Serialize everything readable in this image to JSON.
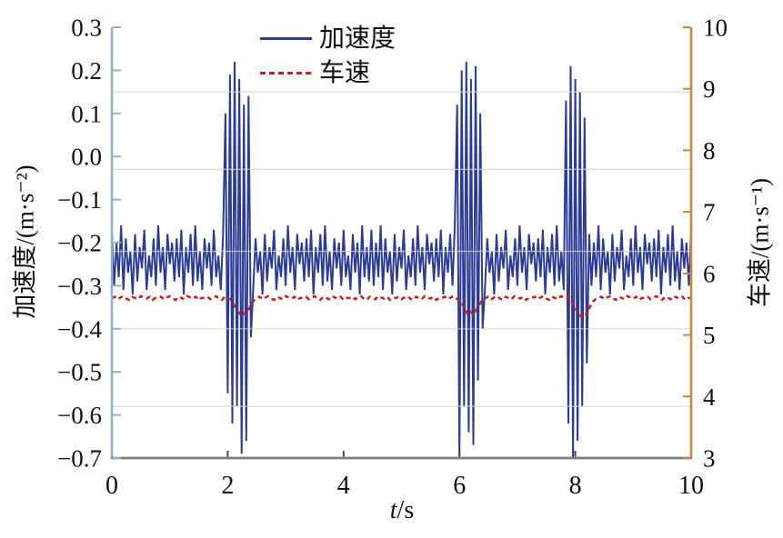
{
  "chart_data": {
    "type": "line",
    "title": "",
    "xlabel": "t/s",
    "xlabel_italic": "t",
    "xlabel_rest": "/s",
    "x_range": [
      0,
      10
    ],
    "x_ticks": [
      0,
      2,
      4,
      6,
      8,
      10
    ],
    "x_tick_labels": [
      "0",
      "2",
      "4",
      "6",
      "8",
      "10"
    ],
    "left_axis": {
      "label": "加速度/(m·s⁻²)",
      "range": [
        -0.7,
        0.3
      ],
      "tick_values": [
        0.3,
        0.2,
        0.1,
        0.0,
        -0.1,
        -0.2,
        -0.3,
        -0.4,
        -0.5,
        -0.6,
        -0.7
      ],
      "tick_labels": [
        "0.3",
        "0.2",
        "0.1",
        "0.0",
        "−0.1",
        "−0.2",
        "−0.3",
        "−0.4",
        "−0.5",
        "−0.6",
        "−0.7"
      ],
      "color": "#8fb3ca"
    },
    "right_axis": {
      "label": "车速/(m·s⁻¹)",
      "range": [
        3,
        10
      ],
      "tick_values": [
        10,
        9,
        8,
        7,
        6,
        5,
        4,
        3
      ],
      "tick_labels": [
        "10",
        "9",
        "8",
        "7",
        "6",
        "5",
        "4",
        "3"
      ],
      "color": "#c8883e"
    },
    "bottom_axis_color": "#7f7f7f",
    "x_tick_color": "#4a4a4a",
    "grid": {
      "left_values": [
        0.15,
        -0.03,
        -0.22,
        -0.4,
        -0.58
      ],
      "color": "#d8cfc8"
    },
    "legend": {
      "position": "top-center",
      "entries": [
        {
          "label": "加速度",
          "style": "solid"
        },
        {
          "label": "车速",
          "style": "dashed"
        }
      ]
    },
    "series": [
      {
        "name": "加速度",
        "axis": "left",
        "color": "#2c3b94",
        "line_style": "solid",
        "t0": 0,
        "dt": 0.04,
        "values": [
          -0.17,
          -0.3,
          -0.2,
          -0.28,
          -0.16,
          -0.31,
          -0.19,
          -0.27,
          -0.22,
          -0.32,
          -0.18,
          -0.29,
          -0.21,
          -0.26,
          -0.17,
          -0.31,
          -0.23,
          -0.28,
          -0.19,
          -0.3,
          -0.16,
          -0.27,
          -0.21,
          -0.31,
          -0.18,
          -0.25,
          -0.2,
          -0.29,
          -0.19,
          -0.28,
          -0.17,
          -0.32,
          -0.21,
          -0.27,
          -0.18,
          -0.3,
          -0.16,
          -0.29,
          -0.22,
          -0.31,
          -0.19,
          -0.26,
          -0.2,
          -0.3,
          -0.17,
          -0.28,
          -0.23,
          -0.31,
          -0.18,
          0.1,
          -0.55,
          0.19,
          -0.62,
          0.22,
          -0.58,
          0.18,
          -0.69,
          0.12,
          -0.66,
          0.14,
          -0.42,
          -0.31,
          -0.19,
          -0.27,
          -0.22,
          -0.32,
          -0.18,
          -0.29,
          -0.21,
          -0.26,
          -0.17,
          -0.31,
          -0.23,
          -0.28,
          -0.19,
          -0.3,
          -0.16,
          -0.27,
          -0.21,
          -0.31,
          -0.18,
          -0.25,
          -0.2,
          -0.29,
          -0.19,
          -0.28,
          -0.17,
          -0.32,
          -0.21,
          -0.27,
          -0.18,
          -0.3,
          -0.16,
          -0.29,
          -0.22,
          -0.31,
          -0.19,
          -0.26,
          -0.2,
          -0.3,
          -0.17,
          -0.28,
          -0.23,
          -0.31,
          -0.18,
          -0.27,
          -0.2,
          -0.32,
          -0.16,
          -0.28,
          -0.21,
          -0.29,
          -0.17,
          -0.3,
          -0.2,
          -0.28,
          -0.16,
          -0.31,
          -0.19,
          -0.27,
          -0.22,
          -0.32,
          -0.18,
          -0.29,
          -0.21,
          -0.26,
          -0.17,
          -0.31,
          -0.23,
          -0.28,
          -0.19,
          -0.3,
          -0.16,
          -0.27,
          -0.21,
          -0.31,
          -0.18,
          -0.25,
          -0.2,
          -0.29,
          -0.19,
          -0.28,
          -0.17,
          -0.32,
          -0.21,
          -0.27,
          -0.18,
          -0.3,
          -0.16,
          0.12,
          -0.7,
          0.2,
          -0.58,
          0.22,
          -0.64,
          0.18,
          -0.67,
          0.21,
          -0.52,
          0.1,
          -0.4,
          -0.31,
          -0.19,
          -0.27,
          -0.22,
          -0.32,
          -0.18,
          -0.29,
          -0.21,
          -0.26,
          -0.17,
          -0.31,
          -0.23,
          -0.28,
          -0.19,
          -0.3,
          -0.16,
          -0.27,
          -0.21,
          -0.31,
          -0.18,
          -0.25,
          -0.2,
          -0.29,
          -0.19,
          -0.28,
          -0.17,
          -0.32,
          -0.21,
          -0.27,
          -0.18,
          -0.3,
          -0.16,
          -0.29,
          -0.22,
          -0.31,
          0.13,
          -0.62,
          0.21,
          -0.7,
          0.18,
          -0.66,
          0.15,
          -0.58,
          0.09,
          -0.48,
          -0.18,
          -0.3,
          -0.2,
          -0.28,
          -0.16,
          -0.31,
          -0.19,
          -0.27,
          -0.22,
          -0.32,
          -0.18,
          -0.29,
          -0.21,
          -0.26,
          -0.17,
          -0.31,
          -0.23,
          -0.28,
          -0.19,
          -0.3,
          -0.16,
          -0.27,
          -0.21,
          -0.31,
          -0.18,
          -0.25,
          -0.2,
          -0.29,
          -0.19,
          -0.28,
          -0.17,
          -0.32,
          -0.21,
          -0.27,
          -0.18,
          -0.3,
          -0.16,
          -0.29,
          -0.22,
          -0.31,
          -0.19,
          -0.26,
          -0.2,
          -0.3,
          -0.17
        ]
      },
      {
        "name": "车速",
        "axis": "right",
        "color": "#cb2020",
        "line_style": "dashed",
        "t0": 0,
        "dt": 0.05,
        "values": [
          5.6,
          5.62,
          5.58,
          5.61,
          5.63,
          5.59,
          5.57,
          5.62,
          5.6,
          5.58,
          5.63,
          5.61,
          5.59,
          5.62,
          5.57,
          5.6,
          5.6,
          5.62,
          5.58,
          5.61,
          5.63,
          5.59,
          5.57,
          5.62,
          5.6,
          5.58,
          5.63,
          5.61,
          5.59,
          5.62,
          5.57,
          5.6,
          5.6,
          5.62,
          5.58,
          5.61,
          5.63,
          5.59,
          5.57,
          5.62,
          5.6,
          5.58,
          5.5,
          5.42,
          5.35,
          5.38,
          5.33,
          5.4,
          5.48,
          5.56,
          5.6,
          5.62,
          5.58,
          5.61,
          5.63,
          5.59,
          5.57,
          5.62,
          5.6,
          5.58,
          5.63,
          5.61,
          5.59,
          5.62,
          5.57,
          5.6,
          5.6,
          5.62,
          5.58,
          5.61,
          5.63,
          5.59,
          5.57,
          5.62,
          5.6,
          5.58,
          5.63,
          5.61,
          5.59,
          5.62,
          5.57,
          5.6,
          5.6,
          5.62,
          5.58,
          5.61,
          5.63,
          5.59,
          5.57,
          5.62,
          5.6,
          5.58,
          5.63,
          5.61,
          5.59,
          5.62,
          5.57,
          5.6,
          5.6,
          5.62,
          5.58,
          5.61,
          5.63,
          5.59,
          5.57,
          5.62,
          5.6,
          5.58,
          5.63,
          5.61,
          5.59,
          5.62,
          5.57,
          5.6,
          5.6,
          5.62,
          5.58,
          5.61,
          5.63,
          5.59,
          5.57,
          5.5,
          5.4,
          5.33,
          5.37,
          5.32,
          5.42,
          5.5,
          5.58,
          5.6,
          5.62,
          5.58,
          5.61,
          5.63,
          5.59,
          5.57,
          5.62,
          5.6,
          5.58,
          5.63,
          5.61,
          5.59,
          5.62,
          5.57,
          5.6,
          5.6,
          5.62,
          5.58,
          5.61,
          5.63,
          5.59,
          5.57,
          5.62,
          5.6,
          5.58,
          5.63,
          5.61,
          5.59,
          5.62,
          5.52,
          5.44,
          5.34,
          5.3,
          5.36,
          5.33,
          5.45,
          5.54,
          5.58,
          5.6,
          5.62,
          5.58,
          5.61,
          5.63,
          5.59,
          5.57,
          5.62,
          5.6,
          5.58,
          5.63,
          5.61,
          5.59,
          5.62,
          5.57,
          5.6,
          5.6,
          5.62,
          5.58,
          5.61,
          5.63,
          5.59,
          5.57,
          5.62,
          5.6,
          5.58,
          5.63,
          5.61,
          5.59,
          5.62,
          5.57,
          5.6,
          5.6
        ]
      }
    ]
  }
}
